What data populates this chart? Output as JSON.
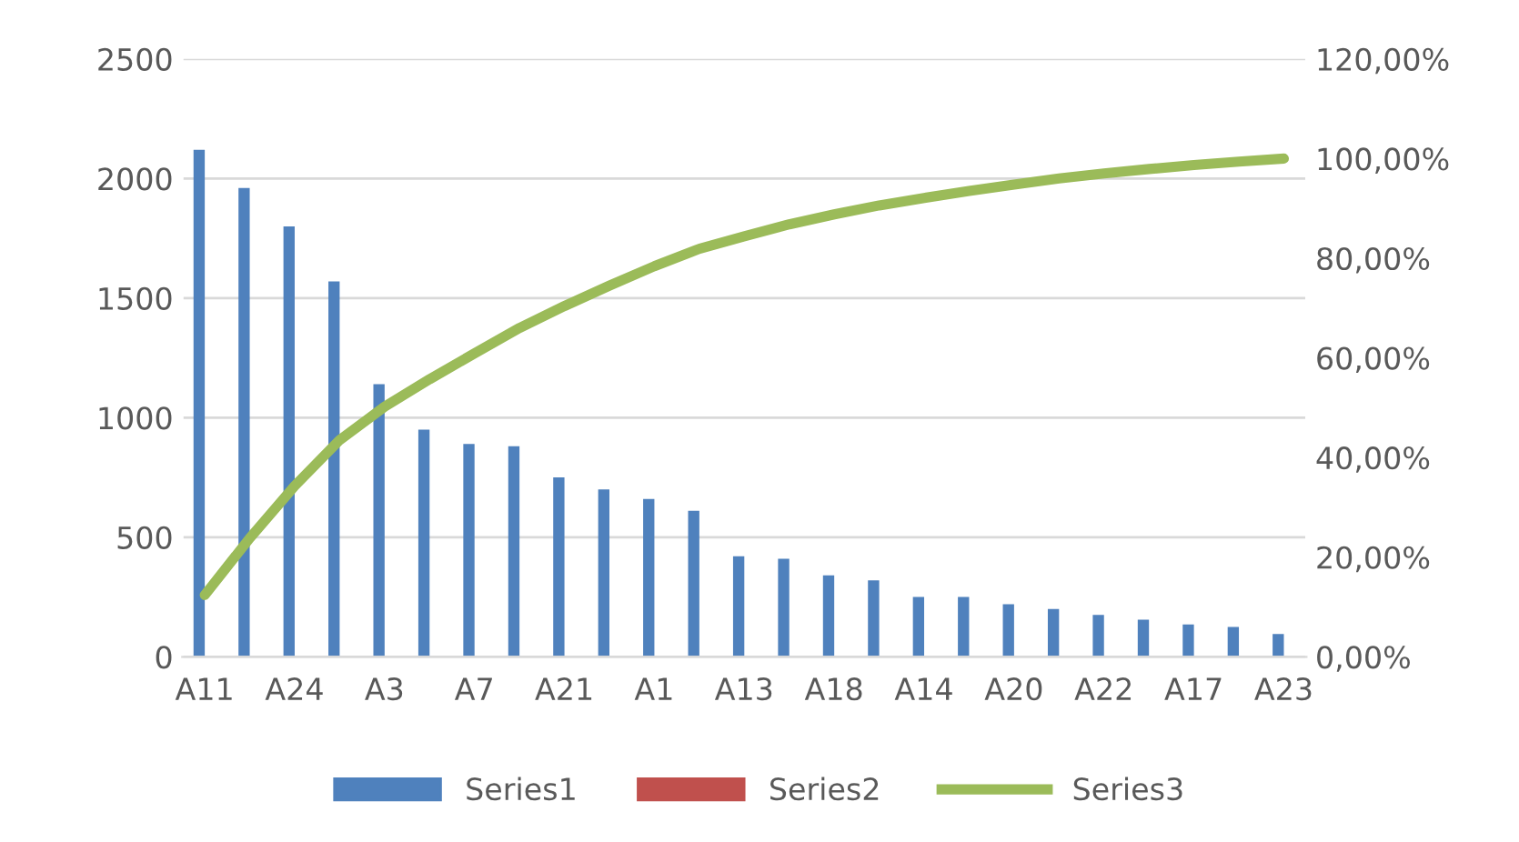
{
  "chart_data": {
    "type": "bar",
    "categories": [
      "A11",
      null,
      "A24",
      null,
      "A3",
      null,
      "A7",
      null,
      "A21",
      null,
      "A1",
      null,
      "A13",
      null,
      "A18",
      null,
      "A14",
      null,
      "A20",
      null,
      "A22",
      null,
      "A17",
      null,
      "A23"
    ],
    "series": [
      {
        "name": "Series1",
        "color": "#4f81bd",
        "values": [
          2120,
          1960,
          1800,
          1570,
          1140,
          950,
          890,
          880,
          750,
          700,
          660,
          610,
          420,
          410,
          340,
          320,
          250,
          250,
          220,
          200,
          175,
          155,
          135,
          125,
          95
        ]
      },
      {
        "name": "Series2",
        "color": "#c0504d",
        "values": [
          null,
          null,
          null,
          null,
          null,
          null,
          null,
          null,
          null,
          null,
          null,
          null,
          null,
          null,
          null,
          null,
          null,
          null,
          null,
          null,
          null,
          null,
          null,
          null,
          null
        ]
      },
      {
        "name": "Series3",
        "color": "#9bbb59",
        "type": "line",
        "axis": "y2",
        "values": [
          12.4,
          23.8,
          34.3,
          43.5,
          50.2,
          55.7,
          60.9,
          66.0,
          70.4,
          74.5,
          78.4,
          81.9,
          84.4,
          86.8,
          88.8,
          90.6,
          92.1,
          93.5,
          94.8,
          96.0,
          97.0,
          97.9,
          98.7,
          99.4,
          100.0
        ]
      }
    ],
    "ylim": [
      0,
      2500
    ],
    "yticks": [
      0,
      500,
      1000,
      1500,
      2000,
      2500
    ],
    "y2lim": [
      0,
      120
    ],
    "y2ticks": [
      {
        "value": 0,
        "label": "0,00%"
      },
      {
        "value": 20,
        "label": "20,00%"
      },
      {
        "value": 40,
        "label": "40,00%"
      },
      {
        "value": 60,
        "label": "60,00%"
      },
      {
        "value": 80,
        "label": "80,00%"
      },
      {
        "value": 100,
        "label": "100,00%"
      },
      {
        "value": 120,
        "label": "120,00%"
      }
    ],
    "grid": "y",
    "legend": "bottom",
    "marker": "none",
    "line_style": "solid"
  }
}
